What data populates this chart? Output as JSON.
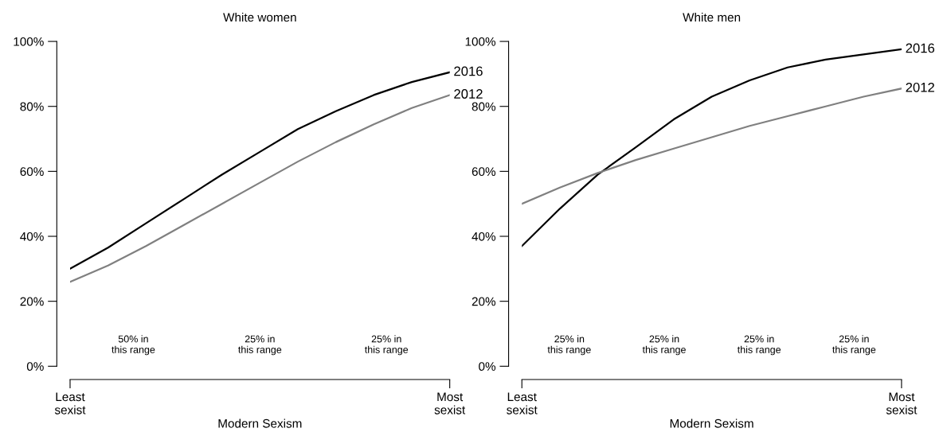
{
  "chart_data": [
    {
      "type": "line",
      "title": "White women",
      "xlabel": "Modern Sexism",
      "categories": [
        "Least\nsexist",
        null,
        null,
        null,
        null,
        null,
        null,
        null,
        null,
        null,
        "Most\nsexist"
      ],
      "series": [
        {
          "name": "2016",
          "color": "#000000",
          "values": [
            30,
            36.5,
            44,
            51.5,
            59,
            66,
            73,
            78.5,
            83.5,
            87.5,
            90.5
          ]
        },
        {
          "name": "2012",
          "color": "#808080",
          "values": [
            26,
            31,
            37,
            43.5,
            50,
            56.5,
            63,
            69,
            74.5,
            79.5,
            83.5
          ]
        }
      ],
      "ylim": [
        0,
        100
      ],
      "yticks": [
        {
          "value": 0,
          "label": "0%"
        },
        {
          "value": 20,
          "label": "20%"
        },
        {
          "value": 40,
          "label": "40%"
        },
        {
          "value": 60,
          "label": "60%"
        },
        {
          "value": 80,
          "label": "80%"
        },
        {
          "value": 100,
          "label": "100%"
        }
      ],
      "annotations": [
        "50% in\nthis range",
        "25% in\nthis range",
        "25% in\nthis range"
      ],
      "grid": false,
      "legend": false,
      "marker": "none",
      "line_style": "solid"
    },
    {
      "type": "line",
      "title": "White men",
      "xlabel": "Modern Sexism",
      "categories": [
        "Least\nsexist",
        null,
        null,
        null,
        null,
        null,
        null,
        null,
        null,
        null,
        "Most\nsexist"
      ],
      "series": [
        {
          "name": "2016",
          "color": "#000000",
          "values": [
            37,
            48.5,
            59,
            67.4,
            76,
            83,
            88,
            92,
            94.4,
            96,
            97.6
          ]
        },
        {
          "name": "2012",
          "color": "#808080",
          "values": [
            50,
            55,
            59.5,
            63.5,
            67,
            70.5,
            74,
            77,
            80,
            83,
            85.5
          ]
        }
      ],
      "ylim": [
        0,
        100
      ],
      "yticks": [
        {
          "value": 0,
          "label": "0%"
        },
        {
          "value": 20,
          "label": "20%"
        },
        {
          "value": 40,
          "label": "40%"
        },
        {
          "value": 60,
          "label": "60%"
        },
        {
          "value": 80,
          "label": "80%"
        },
        {
          "value": 100,
          "label": "100%"
        }
      ],
      "annotations": [
        "25% in\nthis range",
        "25% in\nthis range",
        "25% in\nthis range",
        "25% in\nthis range"
      ],
      "grid": false,
      "legend": false,
      "marker": "none",
      "line_style": "solid"
    }
  ]
}
